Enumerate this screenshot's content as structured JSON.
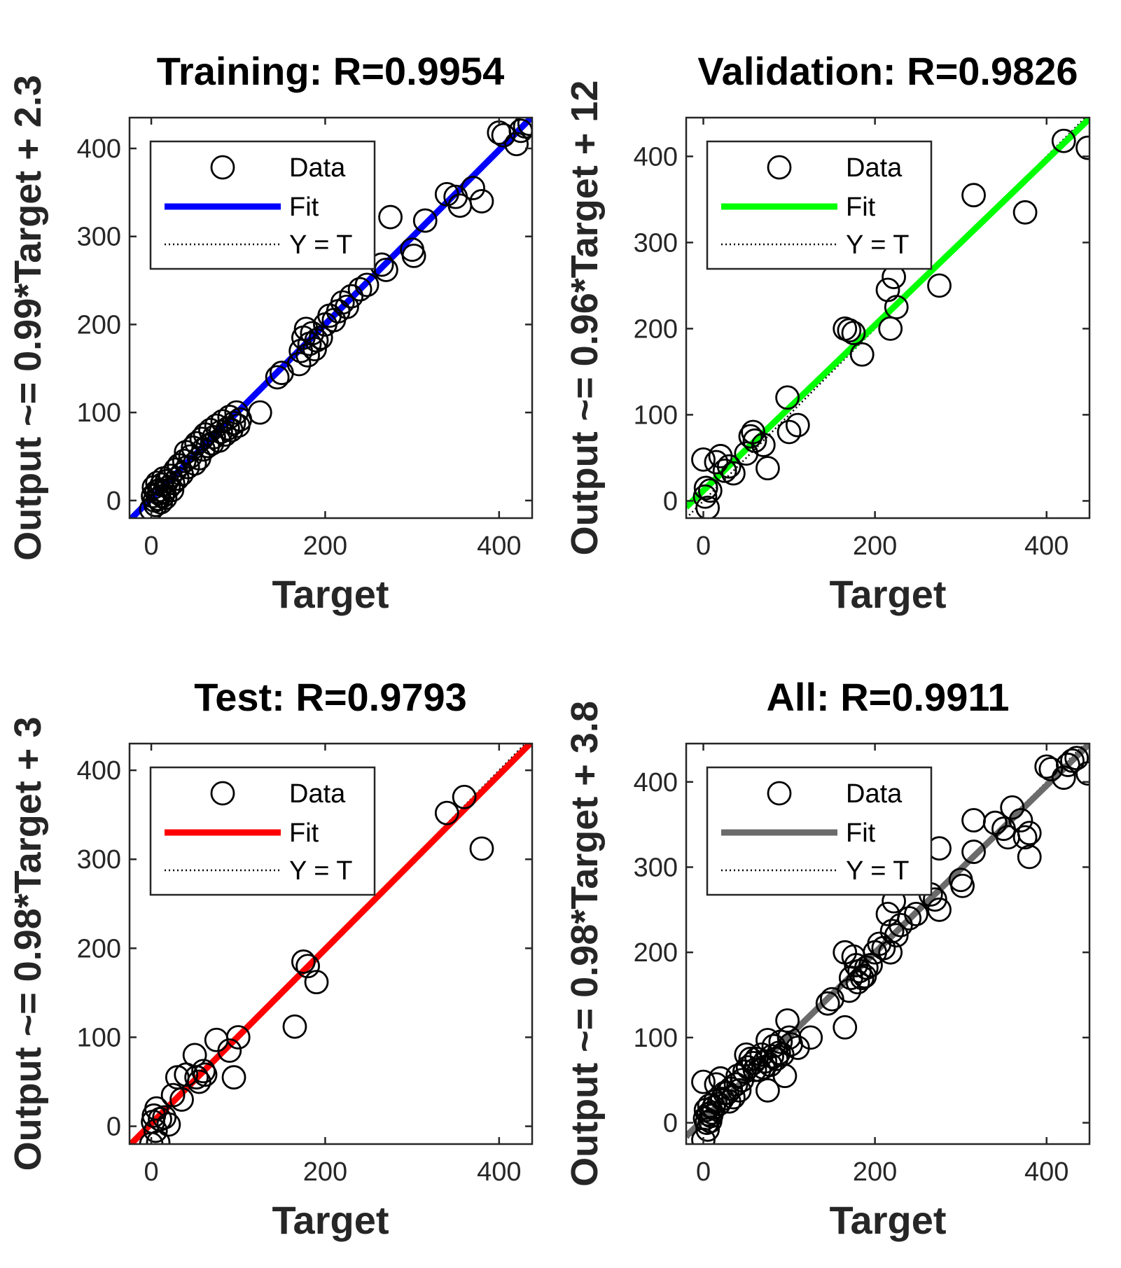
{
  "chart_data": [
    {
      "type": "scatter",
      "title": "Training: R=0.9954",
      "xlabel": "Target",
      "ylabel": "Output ~= 0.99*Target + 2.3",
      "xlim": [
        -25,
        438
      ],
      "ylim": [
        -20,
        435
      ],
      "xticks": [
        0,
        200,
        400
      ],
      "yticks": [
        0,
        100,
        200,
        300,
        400
      ],
      "fit": {
        "slope": 0.99,
        "intercept": 2.3,
        "color": "#0000FF"
      },
      "legend": {
        "position": "top-left",
        "entries": [
          "Data",
          "Fit",
          "Y = T"
        ]
      },
      "points": [
        [
          0,
          -10
        ],
        [
          2,
          5
        ],
        [
          3,
          15
        ],
        [
          4,
          0
        ],
        [
          5,
          -5
        ],
        [
          6,
          10
        ],
        [
          7,
          20
        ],
        [
          8,
          2
        ],
        [
          9,
          8
        ],
        [
          10,
          12
        ],
        [
          11,
          -2
        ],
        [
          12,
          18
        ],
        [
          13,
          5
        ],
        [
          14,
          25
        ],
        [
          15,
          10
        ],
        [
          16,
          3
        ],
        [
          18,
          22
        ],
        [
          20,
          15
        ],
        [
          22,
          28
        ],
        [
          24,
          12
        ],
        [
          25,
          20
        ],
        [
          28,
          35
        ],
        [
          30,
          25
        ],
        [
          32,
          40
        ],
        [
          35,
          30
        ],
        [
          38,
          45
        ],
        [
          40,
          55
        ],
        [
          42,
          38
        ],
        [
          45,
          50
        ],
        [
          48,
          60
        ],
        [
          50,
          42
        ],
        [
          52,
          65
        ],
        [
          55,
          48
        ],
        [
          58,
          70
        ],
        [
          60,
          58
        ],
        [
          62,
          75
        ],
        [
          65,
          62
        ],
        [
          68,
          80
        ],
        [
          70,
          65
        ],
        [
          72,
          72
        ],
        [
          75,
          85
        ],
        [
          78,
          68
        ],
        [
          80,
          78
        ],
        [
          82,
          90
        ],
        [
          85,
          75
        ],
        [
          88,
          82
        ],
        [
          90,
          95
        ],
        [
          92,
          80
        ],
        [
          95,
          88
        ],
        [
          98,
          100
        ],
        [
          100,
          85
        ],
        [
          102,
          92
        ],
        [
          125,
          100
        ],
        [
          145,
          140
        ],
        [
          150,
          145
        ],
        [
          170,
          155
        ],
        [
          172,
          170
        ],
        [
          175,
          185
        ],
        [
          178,
          195
        ],
        [
          180,
          165
        ],
        [
          182,
          178
        ],
        [
          185,
          190
        ],
        [
          188,
          172
        ],
        [
          190,
          182
        ],
        [
          195,
          185
        ],
        [
          200,
          200
        ],
        [
          205,
          210
        ],
        [
          210,
          205
        ],
        [
          215,
          215
        ],
        [
          220,
          225
        ],
        [
          225,
          220
        ],
        [
          230,
          232
        ],
        [
          240,
          240
        ],
        [
          248,
          245
        ],
        [
          265,
          268
        ],
        [
          270,
          262
        ],
        [
          275,
          322
        ],
        [
          300,
          285
        ],
        [
          302,
          278
        ],
        [
          315,
          318
        ],
        [
          340,
          348
        ],
        [
          350,
          345
        ],
        [
          355,
          335
        ],
        [
          370,
          355
        ],
        [
          380,
          340
        ],
        [
          400,
          418
        ],
        [
          405,
          415
        ],
        [
          420,
          405
        ],
        [
          425,
          420
        ],
        [
          430,
          425
        ],
        [
          435,
          428
        ]
      ]
    },
    {
      "type": "scatter",
      "title": "Validation: R=0.9826",
      "xlabel": "Target",
      "ylabel": "Output ~= 0.96*Target + 12",
      "xlim": [
        -20,
        450
      ],
      "ylim": [
        -20,
        445
      ],
      "xticks": [
        0,
        200,
        400
      ],
      "yticks": [
        0,
        100,
        200,
        300,
        400
      ],
      "fit": {
        "slope": 0.96,
        "intercept": 12,
        "color": "#00FF00"
      },
      "legend": {
        "position": "top-left",
        "entries": [
          "Data",
          "Fit",
          "Y = T"
        ]
      },
      "points": [
        [
          0,
          48
        ],
        [
          2,
          5
        ],
        [
          3,
          15
        ],
        [
          5,
          -8
        ],
        [
          8,
          12
        ],
        [
          15,
          45
        ],
        [
          20,
          52
        ],
        [
          25,
          35
        ],
        [
          30,
          40
        ],
        [
          35,
          32
        ],
        [
          50,
          55
        ],
        [
          55,
          75
        ],
        [
          58,
          80
        ],
        [
          60,
          70
        ],
        [
          70,
          65
        ],
        [
          75,
          38
        ],
        [
          98,
          120
        ],
        [
          100,
          80
        ],
        [
          110,
          88
        ],
        [
          165,
          200
        ],
        [
          170,
          198
        ],
        [
          175,
          195
        ],
        [
          185,
          170
        ],
        [
          215,
          245
        ],
        [
          218,
          200
        ],
        [
          222,
          260
        ],
        [
          225,
          225
        ],
        [
          275,
          250
        ],
        [
          315,
          355
        ],
        [
          375,
          335
        ],
        [
          420,
          418
        ],
        [
          448,
          410
        ]
      ]
    },
    {
      "type": "scatter",
      "title": "Test: R=0.9793",
      "xlabel": "Target",
      "ylabel": "Output ~= 0.98*Target + 3",
      "xlim": [
        -25,
        438
      ],
      "ylim": [
        -20,
        430
      ],
      "xticks": [
        0,
        200,
        400
      ],
      "yticks": [
        0,
        100,
        200,
        300,
        400
      ],
      "fit": {
        "slope": 0.98,
        "intercept": 3,
        "color": "#FF0000"
      },
      "legend": {
        "position": "top-left",
        "entries": [
          "Data",
          "Fit",
          "Y = T"
        ]
      },
      "points": [
        [
          0,
          -20
        ],
        [
          2,
          5
        ],
        [
          3,
          12
        ],
        [
          5,
          -5
        ],
        [
          6,
          20
        ],
        [
          8,
          -18
        ],
        [
          10,
          8
        ],
        [
          15,
          10
        ],
        [
          20,
          2
        ],
        [
          25,
          35
        ],
        [
          30,
          55
        ],
        [
          35,
          30
        ],
        [
          40,
          58
        ],
        [
          50,
          80
        ],
        [
          52,
          55
        ],
        [
          55,
          50
        ],
        [
          60,
          62
        ],
        [
          62,
          58
        ],
        [
          75,
          97
        ],
        [
          90,
          85
        ],
        [
          95,
          55
        ],
        [
          100,
          100
        ],
        [
          165,
          112
        ],
        [
          175,
          185
        ],
        [
          180,
          180
        ],
        [
          190,
          162
        ],
        [
          340,
          352
        ],
        [
          360,
          370
        ],
        [
          380,
          312
        ]
      ]
    },
    {
      "type": "scatter",
      "title": "All: R=0.9911",
      "xlabel": "Target",
      "ylabel": "Output ~= 0.98*Target + 3.8",
      "xlim": [
        -20,
        450
      ],
      "ylim": [
        -25,
        445
      ],
      "xticks": [
        0,
        200,
        400
      ],
      "yticks": [
        0,
        100,
        200,
        300,
        400
      ],
      "fit": {
        "slope": 0.98,
        "intercept": 3.8,
        "color": "#6B6B6B"
      },
      "legend": {
        "position": "top-left",
        "entries": [
          "Data",
          "Fit",
          "Y = T"
        ]
      },
      "points": [
        [
          0,
          -20
        ],
        [
          0,
          48
        ],
        [
          2,
          5
        ],
        [
          3,
          15
        ],
        [
          4,
          0
        ],
        [
          5,
          -8
        ],
        [
          6,
          10
        ],
        [
          7,
          20
        ],
        [
          8,
          2
        ],
        [
          9,
          8
        ],
        [
          10,
          12
        ],
        [
          12,
          18
        ],
        [
          14,
          25
        ],
        [
          15,
          45
        ],
        [
          18,
          22
        ],
        [
          20,
          52
        ],
        [
          22,
          28
        ],
        [
          25,
          35
        ],
        [
          28,
          35
        ],
        [
          30,
          25
        ],
        [
          32,
          40
        ],
        [
          35,
          30
        ],
        [
          38,
          45
        ],
        [
          40,
          55
        ],
        [
          42,
          38
        ],
        [
          45,
          50
        ],
        [
          48,
          60
        ],
        [
          50,
          80
        ],
        [
          52,
          65
        ],
        [
          55,
          75
        ],
        [
          58,
          70
        ],
        [
          60,
          62
        ],
        [
          62,
          75
        ],
        [
          65,
          62
        ],
        [
          68,
          80
        ],
        [
          70,
          65
        ],
        [
          72,
          72
        ],
        [
          75,
          38
        ],
        [
          75,
          97
        ],
        [
          78,
          68
        ],
        [
          80,
          78
        ],
        [
          82,
          90
        ],
        [
          85,
          75
        ],
        [
          88,
          82
        ],
        [
          90,
          95
        ],
        [
          92,
          80
        ],
        [
          95,
          55
        ],
        [
          98,
          120
        ],
        [
          100,
          100
        ],
        [
          102,
          92
        ],
        [
          110,
          88
        ],
        [
          125,
          100
        ],
        [
          145,
          140
        ],
        [
          150,
          145
        ],
        [
          165,
          112
        ],
        [
          165,
          200
        ],
        [
          170,
          155
        ],
        [
          172,
          170
        ],
        [
          175,
          195
        ],
        [
          178,
          185
        ],
        [
          180,
          165
        ],
        [
          182,
          178
        ],
        [
          185,
          170
        ],
        [
          188,
          172
        ],
        [
          190,
          182
        ],
        [
          195,
          185
        ],
        [
          200,
          200
        ],
        [
          205,
          210
        ],
        [
          210,
          205
        ],
        [
          215,
          245
        ],
        [
          218,
          200
        ],
        [
          220,
          225
        ],
        [
          222,
          260
        ],
        [
          225,
          220
        ],
        [
          230,
          232
        ],
        [
          240,
          240
        ],
        [
          248,
          245
        ],
        [
          265,
          268
        ],
        [
          270,
          262
        ],
        [
          275,
          322
        ],
        [
          275,
          250
        ],
        [
          300,
          285
        ],
        [
          302,
          278
        ],
        [
          315,
          355
        ],
        [
          315,
          318
        ],
        [
          340,
          352
        ],
        [
          350,
          345
        ],
        [
          355,
          335
        ],
        [
          360,
          370
        ],
        [
          370,
          355
        ],
        [
          375,
          335
        ],
        [
          380,
          312
        ],
        [
          380,
          340
        ],
        [
          400,
          418
        ],
        [
          405,
          415
        ],
        [
          420,
          405
        ],
        [
          425,
          420
        ],
        [
          430,
          425
        ],
        [
          435,
          428
        ],
        [
          448,
          410
        ]
      ]
    }
  ]
}
